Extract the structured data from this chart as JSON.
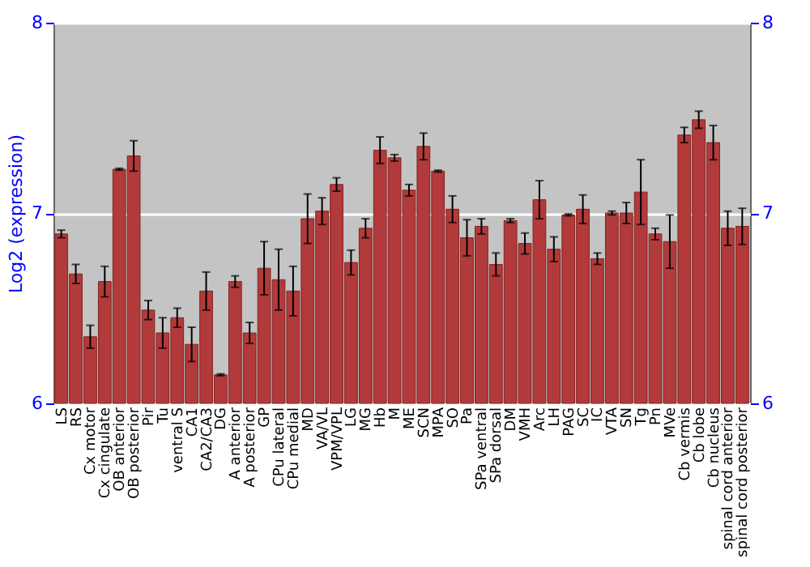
{
  "chart_data": {
    "type": "bar",
    "ylabel": "Log2 (expression)",
    "categories": [
      "LS",
      "RS",
      "Cx motor",
      "Cx cingulate",
      "OB anterior",
      "OB posterior",
      "Pir",
      "Tu",
      "ventral S",
      "CA1",
      "CA2/CA3",
      "DG",
      "A anterior",
      "A posterior",
      "GP",
      "CPu lateral",
      "CPu medial",
      "MD",
      "VA/VL",
      "VPM/VPL",
      "LG",
      "MG",
      "Hb",
      "M",
      "ME",
      "SCN",
      "MPA",
      "SO",
      "Pa",
      "SPa ventral",
      "SPa dorsal",
      "DM",
      "VMH",
      "Arc",
      "LH",
      "PAG",
      "SC",
      "IC",
      "VTA",
      "SN",
      "Tg",
      "Pn",
      "MVe",
      "Cb vermis",
      "Cb lobe",
      "Cb nucleus",
      "spinal cord anterior",
      "spinal cord posterior"
    ],
    "values": [
      6.89,
      6.68,
      6.35,
      6.64,
      7.23,
      7.3,
      6.49,
      6.37,
      6.45,
      6.31,
      6.59,
      6.15,
      6.64,
      6.37,
      6.71,
      6.65,
      6.59,
      6.97,
      7.01,
      7.15,
      6.74,
      6.92,
      7.33,
      7.29,
      7.12,
      7.35,
      7.22,
      7.02,
      6.87,
      6.93,
      6.73,
      6.96,
      6.84,
      7.07,
      6.81,
      6.99,
      7.02,
      6.76,
      7.0,
      7.0,
      7.11,
      6.89,
      6.85,
      7.41,
      7.49,
      7.37,
      6.92,
      6.93
    ],
    "errors": [
      0.02,
      0.05,
      0.06,
      0.08,
      0.005,
      0.08,
      0.05,
      0.08,
      0.05,
      0.09,
      0.1,
      0.005,
      0.03,
      0.055,
      0.14,
      0.16,
      0.13,
      0.13,
      0.07,
      0.035,
      0.065,
      0.05,
      0.07,
      0.017,
      0.03,
      0.07,
      0.005,
      0.07,
      0.095,
      0.04,
      0.06,
      0.01,
      0.055,
      0.1,
      0.065,
      0.005,
      0.075,
      0.03,
      0.01,
      0.055,
      0.17,
      0.03,
      0.14,
      0.04,
      0.045,
      0.09,
      0.09,
      0.095
    ],
    "color": "#b33a3a",
    "ylim": [
      6,
      8
    ],
    "yticks": [
      6,
      7,
      8
    ],
    "y2lim": [
      6,
      8
    ],
    "y2ticks": [
      6,
      7,
      8
    ],
    "grid": "y"
  }
}
